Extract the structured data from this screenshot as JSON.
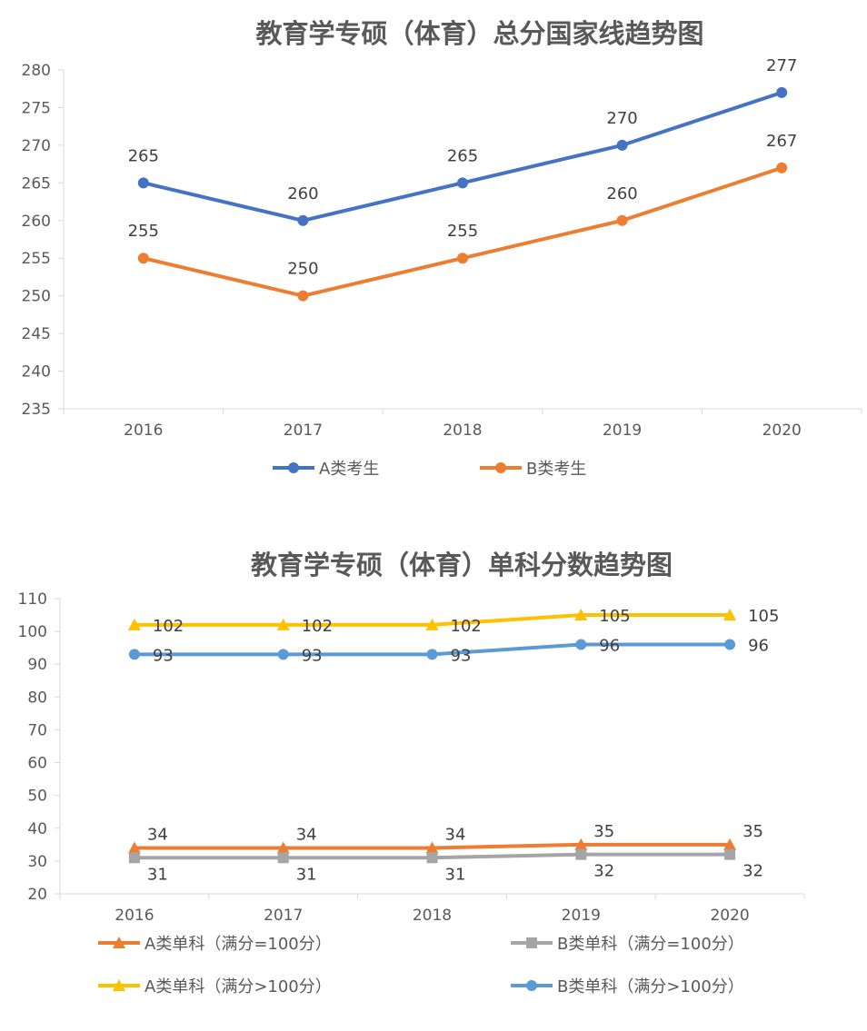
{
  "chart_data": [
    {
      "type": "line",
      "title": "教育学专硕（体育）总分国家线趋势图",
      "categories": [
        "2016",
        "2017",
        "2018",
        "2019",
        "2020"
      ],
      "ylim": [
        235,
        280
      ],
      "yticks": [
        235,
        240,
        245,
        250,
        255,
        260,
        265,
        270,
        275,
        280
      ],
      "grid": false,
      "legend": "bottom",
      "series": [
        {
          "name": "A类考生",
          "values": [
            265,
            260,
            265,
            270,
            277
          ],
          "color": "#4472C4",
          "marker": "circle"
        },
        {
          "name": "B类考生",
          "values": [
            255,
            250,
            255,
            260,
            267
          ],
          "color": "#ED7D31",
          "marker": "circle"
        }
      ]
    },
    {
      "type": "line",
      "title": "教育学专硕（体育）单科分数趋势图",
      "categories": [
        "2016",
        "2017",
        "2018",
        "2019",
        "2020"
      ],
      "ylim": [
        20,
        110
      ],
      "yticks": [
        20,
        30,
        40,
        50,
        60,
        70,
        80,
        90,
        100,
        110
      ],
      "grid": false,
      "legend": "bottom",
      "series": [
        {
          "name": "A类单科（满分=100分）",
          "values": [
            34,
            34,
            34,
            35,
            35
          ],
          "color": "#ED7D31",
          "marker": "triangle"
        },
        {
          "name": "B类单科（满分=100分）",
          "values": [
            31,
            31,
            31,
            32,
            32
          ],
          "color": "#A5A5A5",
          "marker": "square"
        },
        {
          "name": "A类单科（满分>100分）",
          "values": [
            102,
            102,
            102,
            105,
            105
          ],
          "color": "#FFC000",
          "marker": "triangle"
        },
        {
          "name": "B类单科（满分>100分）",
          "values": [
            93,
            93,
            93,
            96,
            96
          ],
          "color": "#5B9BD5",
          "marker": "circle"
        }
      ]
    }
  ]
}
